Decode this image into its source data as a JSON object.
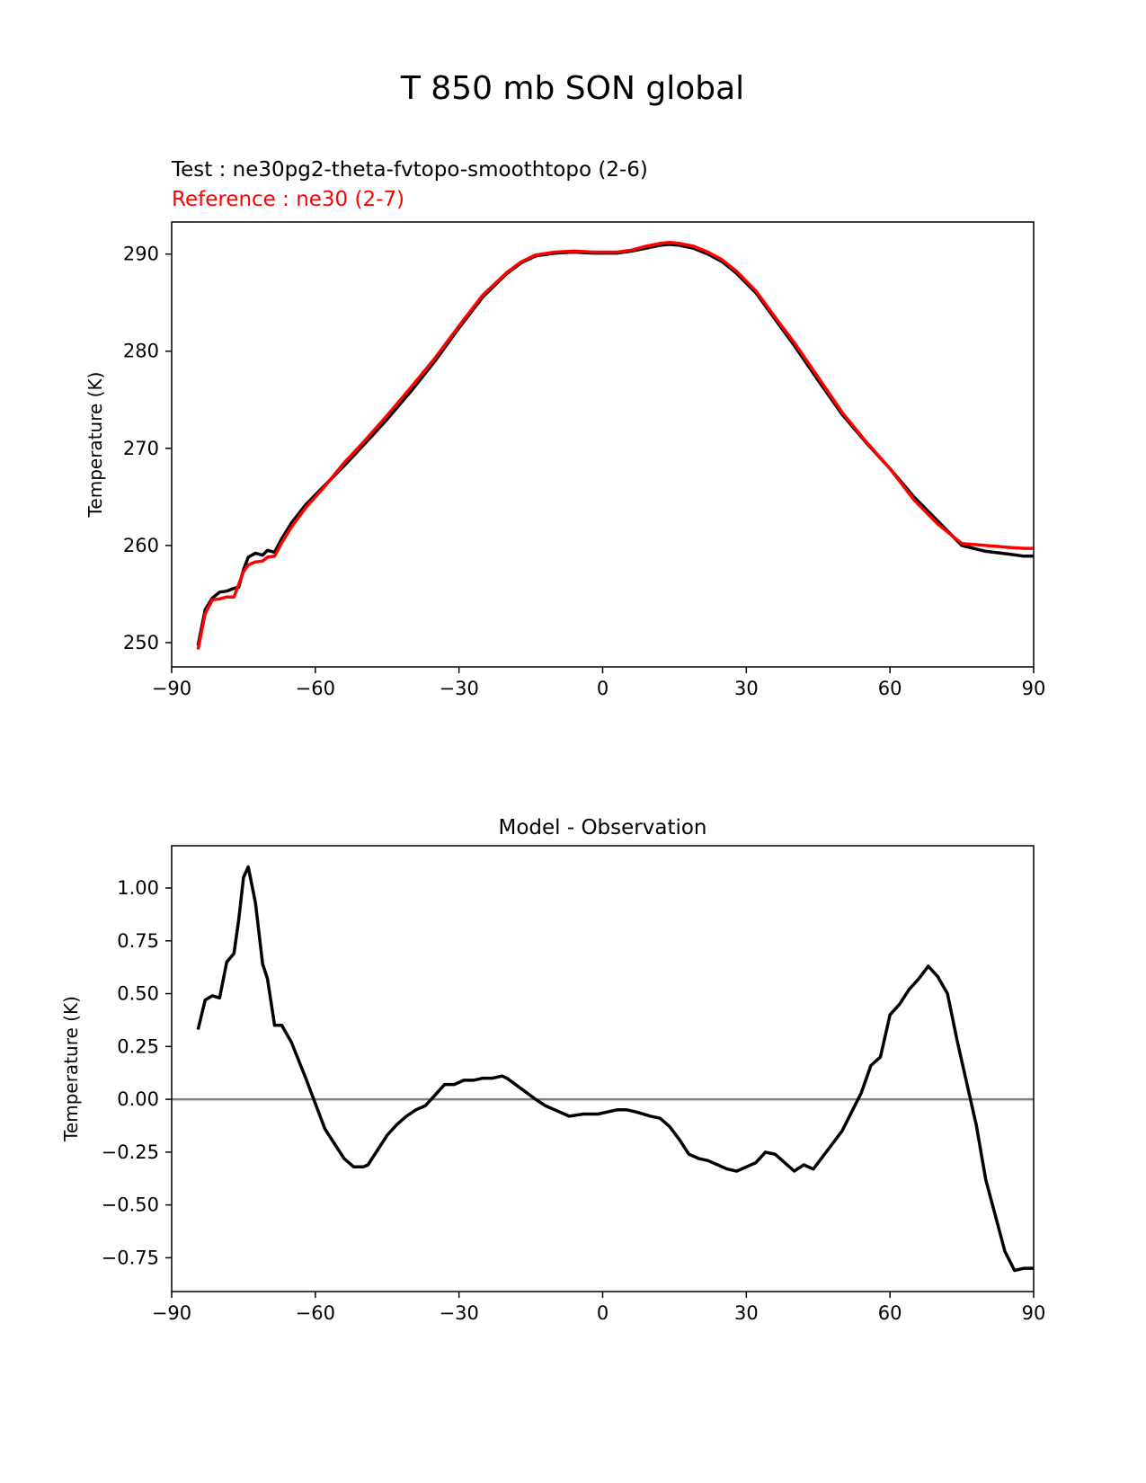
{
  "page": {
    "title": "T 850 mb SON global",
    "test_label": "Test : ne30pg2-theta-fvtopo-smoothtopo (2-6)",
    "ref_label": "Reference : ne30 (2-7)"
  },
  "colors": {
    "test": "#000000",
    "reference": "#ff0000",
    "zero_line": "#808080"
  },
  "chart_data": [
    {
      "type": "line",
      "title": "",
      "xlabel": "",
      "ylabel": "Temperature (K)",
      "xlim": [
        -90,
        90
      ],
      "ylim": [
        247.5,
        293.3
      ],
      "xticks": [
        -90,
        -60,
        -30,
        0,
        30,
        60,
        90
      ],
      "xtick_labels": [
        "−90",
        "−60",
        "−30",
        "0",
        "30",
        "60",
        "90"
      ],
      "yticks": [
        250,
        260,
        270,
        280,
        290
      ],
      "ytick_labels": [
        "250",
        "260",
        "270",
        "280",
        "290"
      ],
      "grid": false,
      "series": [
        {
          "name": "Test : ne30pg2-theta-fvtopo-smoothtopo (2-6)",
          "x": [
            -84.5,
            -83,
            -81.5,
            -80,
            -78.5,
            -77,
            -76,
            -75,
            -74,
            -72.5,
            -71,
            -70,
            -68.5,
            -67,
            -65,
            -62,
            -58,
            -54,
            -50,
            -45,
            -40,
            -35,
            -30,
            -25,
            -20,
            -17,
            -14,
            -10,
            -6,
            -2,
            0,
            3,
            6,
            9,
            12,
            14,
            16,
            19,
            22,
            25,
            28,
            32,
            36,
            40,
            45,
            50,
            55,
            60,
            65,
            70,
            75,
            80,
            85,
            88,
            90
          ],
          "values": [
            249.7,
            253.4,
            254.6,
            255.2,
            255.3,
            255.6,
            255.7,
            257.5,
            258.8,
            259.2,
            259.0,
            259.5,
            259.3,
            260.7,
            262.3,
            264.2,
            266.2,
            268.2,
            270.3,
            273.0,
            275.9,
            279.0,
            282.4,
            285.6,
            288.0,
            289.1,
            289.8,
            290.1,
            290.2,
            290.1,
            290.1,
            290.1,
            290.3,
            290.6,
            290.9,
            291.0,
            290.9,
            290.6,
            290.0,
            289.2,
            288.0,
            286.0,
            283.3,
            280.6,
            277.0,
            273.5,
            270.6,
            267.9,
            265.0,
            262.5,
            260.0,
            259.4,
            259.1,
            258.9,
            258.9
          ]
        },
        {
          "name": "Reference : ne30 (2-7)",
          "x": [
            -84.5,
            -83,
            -81.5,
            -80,
            -78.5,
            -77,
            -76,
            -75,
            -74,
            -72.5,
            -71,
            -70,
            -68.5,
            -67,
            -65,
            -62,
            -58,
            -54,
            -50,
            -45,
            -40,
            -35,
            -30,
            -25,
            -20,
            -17,
            -14,
            -10,
            -6,
            -2,
            0,
            3,
            6,
            9,
            12,
            14,
            16,
            19,
            22,
            25,
            28,
            32,
            36,
            40,
            45,
            50,
            55,
            60,
            65,
            70,
            75,
            80,
            85,
            88,
            90
          ],
          "values": [
            249.3,
            253.0,
            254.4,
            254.5,
            254.7,
            254.7,
            256.0,
            257.3,
            258.0,
            258.3,
            258.4,
            258.8,
            258.9,
            260.3,
            261.9,
            263.9,
            266.1,
            268.5,
            270.6,
            273.4,
            276.3,
            279.3,
            282.6,
            285.8,
            288.1,
            289.2,
            289.9,
            290.2,
            290.3,
            290.2,
            290.2,
            290.2,
            290.4,
            290.8,
            291.1,
            291.2,
            291.1,
            290.8,
            290.2,
            289.4,
            288.2,
            286.2,
            283.5,
            280.9,
            277.3,
            273.7,
            270.7,
            267.9,
            264.7,
            262.2,
            260.2,
            260.0,
            259.8,
            259.7,
            259.7
          ]
        }
      ]
    },
    {
      "type": "line",
      "title": "Model - Observation",
      "xlabel": "",
      "ylabel": "Temperature (K)",
      "xlim": [
        -90,
        90
      ],
      "ylim": [
        -0.91,
        1.2
      ],
      "xticks": [
        -90,
        -60,
        -30,
        0,
        30,
        60,
        90
      ],
      "xtick_labels": [
        "−90",
        "−60",
        "−30",
        "0",
        "30",
        "60",
        "90"
      ],
      "yticks": [
        1.0,
        0.75,
        0.5,
        0.25,
        0.0,
        -0.25,
        -0.5,
        -0.75
      ],
      "ytick_labels": [
        "1.00",
        "0.75",
        "0.50",
        "0.25",
        "0.00",
        "−0.25",
        "−0.50",
        "−0.75"
      ],
      "grid": false,
      "hline": 0,
      "series": [
        {
          "name": "Model - Observation",
          "x": [
            -84.5,
            -83,
            -81.5,
            -80,
            -78.5,
            -77,
            -76,
            -75,
            -74,
            -72.5,
            -71,
            -70,
            -68.5,
            -67,
            -65,
            -62,
            -60,
            -58,
            -56,
            -54,
            -52,
            -50,
            -49,
            -47,
            -45,
            -43,
            -41,
            -39,
            -37,
            -35,
            -33,
            -31,
            -29,
            -27,
            -25,
            -23,
            -21,
            -20,
            -17,
            -14,
            -12,
            -10,
            -7,
            -4,
            -1,
            1,
            3,
            5,
            7,
            10,
            12,
            14,
            16,
            18,
            20,
            22,
            24,
            26,
            28,
            30,
            32,
            34,
            36,
            38,
            40,
            42,
            44,
            46,
            48,
            50,
            52,
            54,
            56,
            58,
            60,
            62,
            64,
            66,
            68,
            70,
            72,
            74,
            76,
            78,
            80,
            82,
            84,
            86,
            88,
            90
          ],
          "values": [
            0.33,
            0.47,
            0.49,
            0.48,
            0.65,
            0.69,
            0.85,
            1.05,
            1.1,
            0.93,
            0.64,
            0.57,
            0.35,
            0.35,
            0.27,
            0.1,
            -0.02,
            -0.14,
            -0.21,
            -0.28,
            -0.32,
            -0.32,
            -0.31,
            -0.24,
            -0.17,
            -0.12,
            -0.08,
            -0.05,
            -0.03,
            0.02,
            0.07,
            0.07,
            0.09,
            0.09,
            0.1,
            0.1,
            0.11,
            0.1,
            0.05,
            0.0,
            -0.03,
            -0.05,
            -0.08,
            -0.07,
            -0.07,
            -0.06,
            -0.05,
            -0.05,
            -0.06,
            -0.08,
            -0.09,
            -0.13,
            -0.19,
            -0.26,
            -0.28,
            -0.29,
            -0.31,
            -0.33,
            -0.34,
            -0.32,
            -0.3,
            -0.25,
            -0.26,
            -0.3,
            -0.34,
            -0.31,
            -0.33,
            -0.27,
            -0.21,
            -0.15,
            -0.06,
            0.03,
            0.16,
            0.2,
            0.4,
            0.45,
            0.52,
            0.57,
            0.63,
            0.58,
            0.5,
            0.28,
            0.08,
            -0.12,
            -0.38,
            -0.55,
            -0.72,
            -0.81,
            -0.8,
            -0.8
          ]
        }
      ]
    }
  ]
}
